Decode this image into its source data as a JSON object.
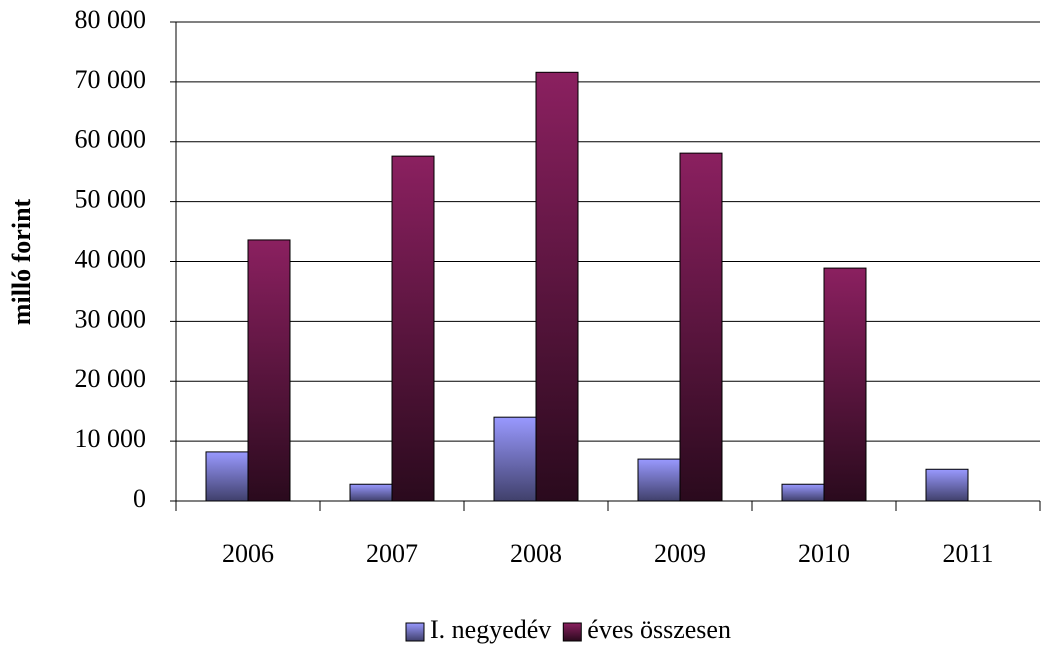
{
  "chart_data": {
    "type": "bar",
    "y_label": "milló forint",
    "categories": [
      "2006",
      "2007",
      "2008",
      "2009",
      "2010",
      "2011"
    ],
    "series": [
      {
        "name": "I. negyedév",
        "color": "#9999ff",
        "values": [
          8200,
          2800,
          14000,
          7000,
          2800,
          5300
        ]
      },
      {
        "name": "éves összesen",
        "color": "#8b2060",
        "values": [
          43600,
          57600,
          71600,
          58100,
          38900,
          null
        ]
      }
    ],
    "ylim": [
      0,
      80000
    ],
    "yticks": [
      0,
      {
        "value": 10000,
        "label": "10 000"
      },
      {
        "value": 20000,
        "label": "20 000"
      },
      {
        "value": 30000,
        "label": "30 000"
      },
      {
        "value": 40000,
        "label": "40 000"
      },
      {
        "value": 50000,
        "label": "50 000"
      },
      {
        "value": 60000,
        "label": "60 000"
      },
      {
        "value": 70000,
        "label": "70 000"
      },
      {
        "value": 80000,
        "label": "80 000"
      }
    ],
    "grid": true,
    "legend": "bottom"
  }
}
